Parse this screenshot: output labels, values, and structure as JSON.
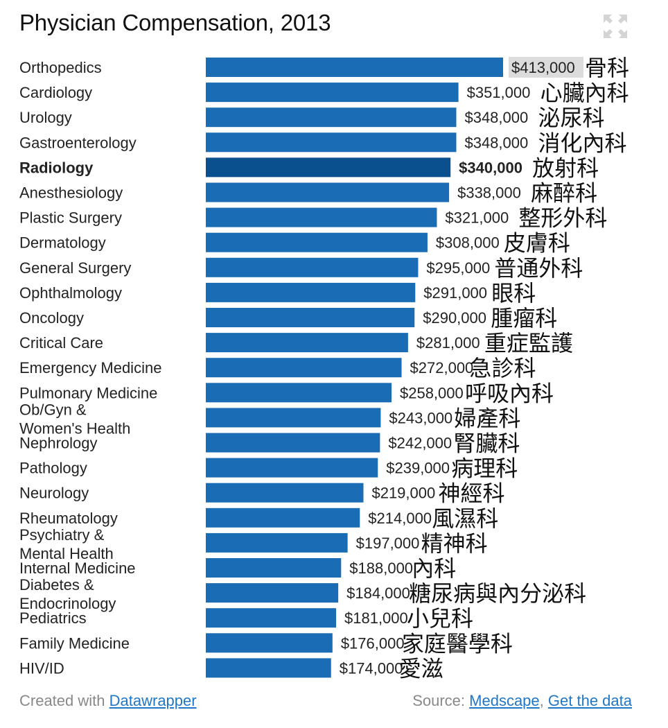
{
  "title": "Physician Compensation, 2013",
  "footer": {
    "created_prefix": "Created with",
    "created_link": "Datawrapper",
    "source_prefix": "Source:",
    "source_link": "Medscape",
    "separator": ",",
    "data_link": "Get the data"
  },
  "colors": {
    "bar": "#1a6db5",
    "bar_highlight": "#0a4f8e",
    "hover_label_bg": "#dcdcdc",
    "text": "#222222"
  },
  "icons": {
    "fullscreen": "expand-arrows-icon"
  },
  "chart_data": {
    "type": "bar",
    "orientation": "horizontal",
    "title": "Physician Compensation, 2013",
    "categories": [
      "Orthopedics",
      "Cardiology",
      "Urology",
      "Gastroenterology",
      "Radiology",
      "Anesthesiology",
      "Plastic Surgery",
      "Dermatology",
      "General Surgery",
      "Ophthalmology",
      "Oncology",
      "Critical Care",
      "Emergency Medicine",
      "Pulmonary Medicine",
      "Ob/Gyn & Women's Health",
      "Nephrology",
      "Pathology",
      "Neurology",
      "Rheumatology",
      "Psychiatry & Mental Health",
      "Internal Medicine",
      "Diabetes & Endocrinology",
      "Pediatrics",
      "Family Medicine",
      "HIV/ID"
    ],
    "values": [
      413000,
      351000,
      348000,
      348000,
      340000,
      338000,
      321000,
      308000,
      295000,
      291000,
      290000,
      281000,
      272000,
      258000,
      243000,
      242000,
      239000,
      219000,
      214000,
      197000,
      188000,
      184000,
      181000,
      176000,
      174000
    ],
    "value_labels": [
      "$413,000",
      "$351,000",
      "$348,000",
      "$348,000",
      "$340,000",
      "$338,000",
      "$321,000",
      "$308,000",
      "$295,000",
      "$291,000",
      "$290,000",
      "$281,000",
      "$272,000",
      "$258,000",
      "$243,000",
      "$242,000",
      "$239,000",
      "$219,000",
      "$214,000",
      "$197,000",
      "$188,000",
      "$184,000",
      "$181,000",
      "$176,000",
      "$174,000"
    ],
    "annotations": [
      "骨科",
      "心臟內科",
      "泌尿科",
      "消化內科",
      "放射科",
      "麻醉科",
      "整形外科",
      "皮膚科",
      "普通外科",
      "眼科",
      "腫瘤科",
      "重症監護",
      "急診科",
      "呼吸內科",
      "婦產科",
      "腎臟科",
      "病理科",
      "神經科",
      "風濕科",
      "精神科",
      "內科",
      "糖尿病與內分泌科",
      "小兒科",
      "家庭醫學科",
      "愛滋"
    ],
    "highlighted_index": 4,
    "hovered_index": 0,
    "xlim": [
      0,
      413000
    ],
    "grid": false,
    "legend": "none"
  }
}
